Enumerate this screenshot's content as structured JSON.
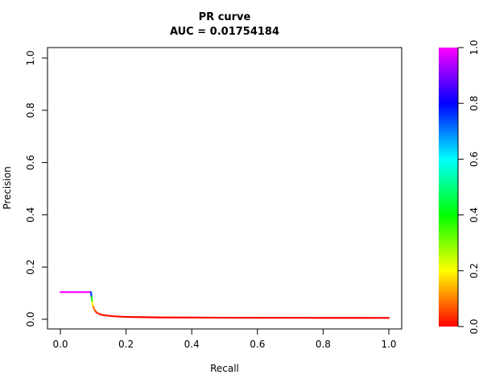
{
  "chart_data": {
    "type": "line",
    "title": "PR curve",
    "subtitle": "AUC = 0.01754184",
    "xlabel": "Recall",
    "ylabel": "Precision",
    "xlim": [
      0,
      1
    ],
    "ylim": [
      0,
      1
    ],
    "x_ticks": [
      "0.0",
      "0.2",
      "0.4",
      "0.6",
      "0.8",
      "1.0"
    ],
    "y_ticks": [
      "0.0",
      "0.2",
      "0.4",
      "0.6",
      "0.8",
      "1.0"
    ],
    "grid": false,
    "legend": "none",
    "series": [
      {
        "x": [
          0.0,
          0.05,
          0.093,
          0.095,
          0.097,
          0.1,
          0.105,
          0.11,
          0.12,
          0.13,
          0.15,
          0.17,
          0.2,
          0.25,
          0.3,
          0.4,
          0.5,
          0.6,
          0.7,
          0.8,
          0.9,
          1.0
        ],
        "y": [
          0.104,
          0.104,
          0.104,
          0.085,
          0.066,
          0.048,
          0.034,
          0.026,
          0.019,
          0.016,
          0.013,
          0.011,
          0.009,
          0.008,
          0.007,
          0.0065,
          0.006,
          0.0058,
          0.0056,
          0.0055,
          0.0053,
          0.0052
        ],
        "threshold": [
          1.0,
          1.0,
          1.0,
          0.5,
          0.25,
          0.12,
          0.07,
          0.04,
          0.025,
          0.018,
          0.012,
          0.009,
          0.006,
          0.004,
          0.003,
          0.002,
          0.0015,
          0.001,
          0.0008,
          0.0005,
          0.0002,
          0.0
        ]
      }
    ],
    "colorbar": {
      "range": [
        0,
        1
      ],
      "ticks": [
        "0.0",
        "0.2",
        "0.4",
        "0.6",
        "0.8",
        "1.0"
      ],
      "gradient": [
        "#ff0000",
        "#ffff00",
        "#00ff00",
        "#00ffff",
        "#0000ff",
        "#ff00ff"
      ]
    }
  }
}
